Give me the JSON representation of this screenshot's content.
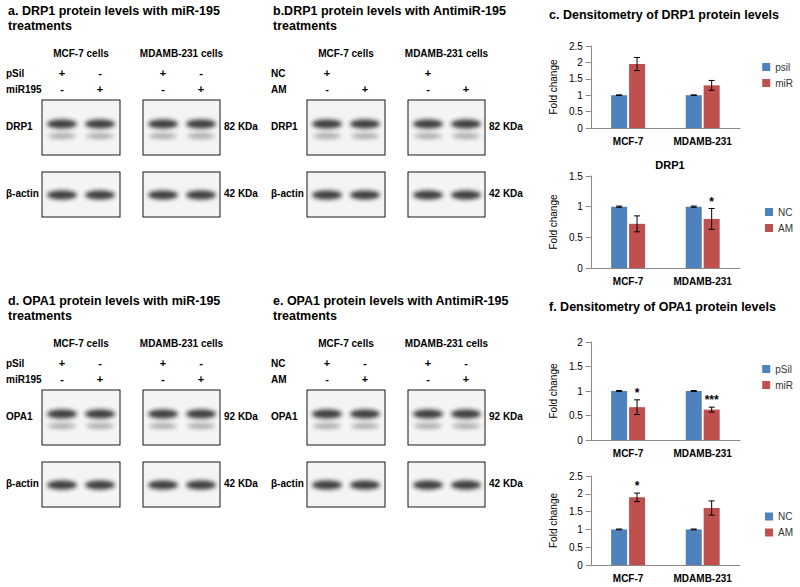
{
  "panels": [
    {
      "title": "a. DRP1 protein levels with miR-195 treatments",
      "cell_lines": [
        "MCF-7 cells",
        "MDAMB-231 cells"
      ],
      "treatments": [
        {
          "label": "pSil",
          "lanes": [
            "+",
            "-",
            "+",
            "-"
          ]
        },
        {
          "label": "miR195",
          "lanes": [
            "-",
            "+",
            "-",
            "+"
          ]
        }
      ],
      "target": {
        "label": "DRP1",
        "size": "82 KDa"
      },
      "loading": {
        "label": "β-actin",
        "size": "42 KDa"
      }
    },
    {
      "title": "b.DRP1 protein levels with AntimiR-195 treatments",
      "cell_lines": [
        "MCF-7 cells",
        "MDAMB-231 cells"
      ],
      "treatments": [
        {
          "label": "NC",
          "lanes": [
            "+",
            null,
            "+",
            null
          ]
        },
        {
          "label": "AM",
          "lanes": [
            "-",
            "+",
            "-",
            "+"
          ]
        }
      ],
      "target": {
        "label": "DRP1",
        "size": "82 KDa"
      },
      "loading": {
        "label": "β-actin",
        "size": "42 KDa"
      }
    },
    {
      "title": "d. OPA1 protein levels with miR-195 treatments",
      "cell_lines": [
        "MCF-7 cells",
        "MDAMB-231 cells"
      ],
      "treatments": [
        {
          "label": "pSil",
          "lanes": [
            "+",
            "-",
            "+",
            "-"
          ]
        },
        {
          "label": "miR195",
          "lanes": [
            "-",
            "+",
            "-",
            "+"
          ]
        }
      ],
      "target": {
        "label": "OPA1",
        "size": "92 KDa"
      },
      "loading": {
        "label": "β-actin",
        "size": "42 KDa"
      }
    },
    {
      "title": "e. OPA1 protein levels with AntimiR-195 treatments",
      "cell_lines": [
        "MCF-7 cells",
        "MDAMB-231 cells"
      ],
      "treatments": [
        {
          "label": "NC",
          "lanes": [
            "+",
            "-",
            "+",
            "-"
          ]
        },
        {
          "label": "AM",
          "lanes": [
            "-",
            "+",
            "-",
            "+"
          ]
        }
      ],
      "target": {
        "label": "OPA1",
        "size": "92 KDa"
      },
      "loading": {
        "label": "β-actin",
        "size": "42 KDa"
      }
    }
  ],
  "chart_data": [
    {
      "type": "bar",
      "title": "c. Densitometry of DRP1 protein levels",
      "ylabel": "Fold change",
      "categories": [
        "MCF-7",
        "MDAMB-231"
      ],
      "series": [
        {
          "name": "psil",
          "color": "#4f81bd",
          "values": [
            1,
            1
          ],
          "errors": [
            0.01,
            0.01
          ]
        },
        {
          "name": "miR",
          "color": "#c0504d",
          "values": [
            1.95,
            1.3
          ],
          "errors": [
            0.2,
            0.15
          ]
        }
      ],
      "ylim": [
        0,
        2.5
      ],
      "yticks": [
        0,
        0.5,
        1,
        1.5,
        2,
        2.5
      ],
      "grid": false,
      "legend": "right"
    },
    {
      "type": "bar",
      "title": "DRP1",
      "ylabel": "Fold change",
      "categories": [
        "MCF-7",
        "MDAMB-231"
      ],
      "series": [
        {
          "name": "NC",
          "color": "#4f81bd",
          "values": [
            1,
            1
          ],
          "errors": [
            0.01,
            0.01
          ]
        },
        {
          "name": "AM",
          "color": "#c0504d",
          "values": [
            0.72,
            0.8
          ],
          "errors": [
            0.13,
            0.17
          ]
        }
      ],
      "ylim": [
        0,
        1.5
      ],
      "yticks": [
        0,
        0.5,
        1,
        1.5
      ],
      "grid": false,
      "legend": "right",
      "annotations": [
        {
          "category": "MDAMB-231",
          "series": "AM",
          "text": "*"
        }
      ]
    },
    {
      "type": "bar",
      "title": "f. Densitometry of OPA1 protein levels",
      "ylabel": "Fold change",
      "categories": [
        "MCF-7",
        "MDAMB-231"
      ],
      "series": [
        {
          "name": "pSil",
          "color": "#4f81bd",
          "values": [
            1,
            1
          ],
          "errors": [
            0.01,
            0.01
          ]
        },
        {
          "name": "miR",
          "color": "#c0504d",
          "values": [
            0.67,
            0.62
          ],
          "errors": [
            0.15,
            0.05
          ]
        }
      ],
      "ylim": [
        0,
        2
      ],
      "yticks": [
        0,
        0.5,
        1,
        1.5,
        2
      ],
      "grid": false,
      "legend": "right",
      "annotations": [
        {
          "category": "MCF-7",
          "series": "miR",
          "text": "*"
        },
        {
          "category": "MDAMB-231",
          "series": "miR",
          "text": "***"
        }
      ]
    },
    {
      "type": "bar",
      "ylabel": "Fold change",
      "categories": [
        "MCF-7",
        "MDAMB-231"
      ],
      "series": [
        {
          "name": "NC",
          "color": "#4f81bd",
          "values": [
            1,
            1
          ],
          "errors": [
            0.01,
            0.01
          ]
        },
        {
          "name": "AM",
          "color": "#c0504d",
          "values": [
            1.9,
            1.6
          ],
          "errors": [
            0.12,
            0.2
          ]
        }
      ],
      "ylim": [
        0,
        2.5
      ],
      "yticks": [
        0,
        0.5,
        1,
        1.5,
        2,
        2.5
      ],
      "grid": false,
      "legend": "right",
      "annotations": [
        {
          "category": "MCF-7",
          "series": "AM",
          "text": "*"
        }
      ]
    }
  ]
}
